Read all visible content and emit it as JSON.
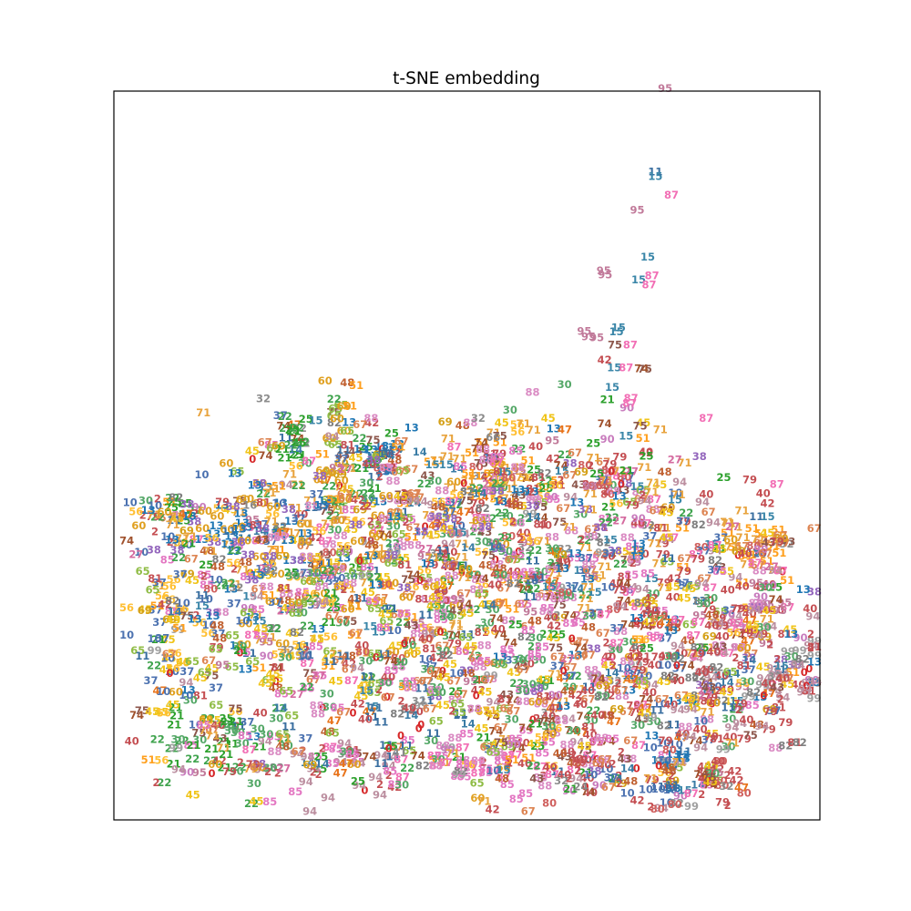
{
  "chart_data": {
    "type": "scatter",
    "title": "t-SNE embedding",
    "xlabel": "",
    "ylabel": "",
    "axis_ticks": false,
    "grid": false,
    "legend": "none",
    "xlim": [
      0,
      1
    ],
    "ylim": [
      0,
      1
    ],
    "label_colors": {
      "0": "#d62728",
      "2": "#c44e52",
      "10": "#4c72b0",
      "11": "#3a6fa0",
      "13": "#1f77b4",
      "14": "#3a7ca5",
      "15": "#3a86a8",
      "21": "#2ca02c",
      "22": "#3fa34d",
      "25": "#2ca02c",
      "27": "#d46a9f",
      "30": "#55a868",
      "32": "#8c8c8c",
      "37": "#4c72b0",
      "38": "#9467bd",
      "40": "#c44e52",
      "42": "#c44e52",
      "43": "#8c564b",
      "45": "#f0c419",
      "47": "#e8731a",
      "48": "#c06030",
      "51": "#ff9f1c",
      "56": "#ffbf33",
      "60": "#e0a020",
      "65": "#8fbc45",
      "67": "#dd8452",
      "69": "#d4a017",
      "71": "#e8a33d",
      "74": "#a0522d",
      "75": "#8c564b",
      "79": "#c44e52",
      "80": "#d0605e",
      "81": "#c44e52",
      "82": "#7f7f7f",
      "85": "#e377c2",
      "87": "#f26fb5",
      "88": "#da8bc3",
      "90": "#c87bbd",
      "94": "#bc8fa0",
      "95": "#c17a9a",
      "99": "#a0a0a0"
    },
    "points": [
      {
        "label": "95",
        "x": 0.774,
        "y": 1.005
      },
      {
        "label": "11",
        "x": 0.76,
        "y": 0.889
      },
      {
        "label": "15",
        "x": 0.76,
        "y": 0.883
      },
      {
        "label": "87",
        "x": 0.783,
        "y": 0.857
      },
      {
        "label": "95",
        "x": 0.734,
        "y": 0.836
      },
      {
        "label": "15",
        "x": 0.749,
        "y": 0.771
      },
      {
        "label": "95",
        "x": 0.686,
        "y": 0.752
      },
      {
        "label": "95",
        "x": 0.688,
        "y": 0.746
      },
      {
        "label": "15",
        "x": 0.736,
        "y": 0.739
      },
      {
        "label": "87",
        "x": 0.755,
        "y": 0.745
      },
      {
        "label": "87",
        "x": 0.751,
        "y": 0.732
      },
      {
        "label": "95",
        "x": 0.658,
        "y": 0.668
      },
      {
        "label": "95",
        "x": 0.664,
        "y": 0.66
      },
      {
        "label": "15",
        "x": 0.707,
        "y": 0.673
      },
      {
        "label": "15",
        "x": 0.704,
        "y": 0.667
      },
      {
        "label": "95",
        "x": 0.676,
        "y": 0.659
      },
      {
        "label": "75",
        "x": 0.702,
        "y": 0.649
      },
      {
        "label": "87",
        "x": 0.724,
        "y": 0.649
      },
      {
        "label": "42",
        "x": 0.687,
        "y": 0.628
      },
      {
        "label": "15",
        "x": 0.701,
        "y": 0.617
      },
      {
        "label": "87",
        "x": 0.718,
        "y": 0.617
      },
      {
        "label": "75",
        "x": 0.745,
        "y": 0.615
      },
      {
        "label": "74",
        "x": 0.74,
        "y": 0.616
      },
      {
        "label": "15",
        "x": 0.698,
        "y": 0.59
      },
      {
        "label": "21",
        "x": 0.691,
        "y": 0.573
      },
      {
        "label": "87",
        "x": 0.725,
        "y": 0.575
      },
      {
        "label": "87",
        "x": 0.723,
        "y": 0.568
      },
      {
        "label": "74",
        "x": 0.687,
        "y": 0.539
      },
      {
        "label": "75",
        "x": 0.738,
        "y": 0.536
      },
      {
        "label": "47",
        "x": 0.63,
        "y": 0.531
      },
      {
        "label": "15",
        "x": 0.718,
        "y": 0.522
      },
      {
        "label": "51",
        "x": 0.742,
        "y": 0.519
      },
      {
        "label": "95",
        "x": 0.612,
        "y": 0.516
      },
      {
        "label": "25",
        "x": 0.671,
        "y": 0.512
      },
      {
        "label": "90",
        "x": 0.691,
        "y": 0.518
      },
      {
        "label": "25",
        "x": 0.747,
        "y": 0.494
      },
      {
        "label": "27",
        "x": 0.788,
        "y": 0.489
      },
      {
        "label": "75",
        "x": 0.537,
        "y": 0.522
      },
      {
        "label": "66",
        "x": 0.527,
        "y": 0.52
      },
      {
        "label": "15",
        "x": 0.734,
        "y": 0.452
      },
      {
        "label": "71",
        "x": 0.757,
        "y": 0.457
      },
      {
        "label": "15",
        "x": 0.921,
        "y": 0.41
      },
      {
        "label": "45",
        "x": 0.33,
        "y": 0.492
      },
      {
        "label": "14",
        "x": 0.422,
        "y": 0.5
      },
      {
        "label": "15",
        "x": 0.44,
        "y": 0.482
      },
      {
        "label": "15",
        "x": 0.46,
        "y": 0.482
      },
      {
        "label": "85",
        "x": 0.48,
        "y": 0.48
      },
      {
        "label": "56",
        "x": 0.617,
        "y": 0.454
      },
      {
        "label": "95",
        "x": 0.667,
        "y": 0.452
      },
      {
        "label": "22",
        "x": 0.248,
        "y": 0.453
      },
      {
        "label": "38",
        "x": 0.154,
        "y": 0.424
      },
      {
        "label": "16",
        "x": 0.178,
        "y": 0.426
      },
      {
        "label": "13",
        "x": 0.163,
        "y": 0.393
      },
      {
        "label": "11",
        "x": 0.148,
        "y": 0.39
      },
      {
        "label": "22",
        "x": 0.076,
        "y": 0.353
      },
      {
        "label": "37",
        "x": 0.078,
        "y": 0.33
      },
      {
        "label": "69",
        "x": 0.027,
        "y": 0.28
      },
      {
        "label": "14",
        "x": 0.07,
        "y": 0.278
      },
      {
        "label": "10",
        "x": 0.054,
        "y": 0.167
      },
      {
        "label": "45",
        "x": 0.038,
        "y": 0.139
      },
      {
        "label": "30",
        "x": 0.438,
        "y": 0.099
      },
      {
        "label": "0",
        "x": 0.4,
        "y": 0.106
      },
      {
        "label": "41",
        "x": 0.393,
        "y": 0.082
      },
      {
        "label": "82",
        "x": 0.426,
        "y": 0.064
      },
      {
        "label": "88",
        "x": 0.445,
        "y": 0.064
      },
      {
        "label": "85",
        "x": 0.484,
        "y": 0.066
      },
      {
        "label": "48",
        "x": 0.54,
        "y": 0.046
      },
      {
        "label": "43",
        "x": 0.59,
        "y": 0.046
      },
      {
        "label": "32",
        "x": 0.625,
        "y": 0.043
      },
      {
        "label": "24",
        "x": 0.653,
        "y": 0.035
      },
      {
        "label": "80",
        "x": 0.608,
        "y": 0.012
      },
      {
        "label": "42",
        "x": 0.734,
        "y": 0.016
      },
      {
        "label": "80",
        "x": 0.763,
        "y": 0.004
      },
      {
        "label": "80",
        "x": 0.788,
        "y": 0.01
      },
      {
        "label": "80",
        "x": 0.853,
        "y": 0.07
      },
      {
        "label": "79",
        "x": 0.882,
        "y": 0.15
      },
      {
        "label": "81",
        "x": 0.96,
        "y": 0.096
      },
      {
        "label": "82",
        "x": 0.967,
        "y": 0.096
      },
      {
        "label": "40",
        "x": 0.85,
        "y": 0.07
      },
      {
        "label": "94",
        "x": 0.825,
        "y": 0.089
      },
      {
        "label": "71",
        "x": 0.794,
        "y": 0.069
      },
      {
        "label": "0",
        "x": 0.77,
        "y": 0.064
      },
      {
        "label": "40",
        "x": 0.982,
        "y": 0.282
      },
      {
        "label": "2",
        "x": 0.989,
        "y": 0.247
      }
    ],
    "clusters": [
      {
        "x": 0.24,
        "y": 0.52,
        "rx": 0.015,
        "ry": 0.02,
        "n": 28,
        "labels": [
          "22",
          "25",
          "21"
        ]
      },
      {
        "x": 0.07,
        "y": 0.42,
        "rx": 0.02,
        "ry": 0.01,
        "n": 18,
        "labels": [
          "22",
          "25"
        ]
      },
      {
        "x": 0.3,
        "y": 0.49,
        "rx": 0.012,
        "ry": 0.05,
        "n": 40,
        "labels": [
          "65",
          "60",
          "22"
        ]
      },
      {
        "x": 0.37,
        "y": 0.5,
        "rx": 0.015,
        "ry": 0.02,
        "n": 24,
        "labels": [
          "14",
          "11",
          "13"
        ]
      },
      {
        "x": 0.53,
        "y": 0.47,
        "rx": 0.04,
        "ry": 0.025,
        "n": 60,
        "labels": [
          "56",
          "51",
          "71"
        ]
      },
      {
        "x": 0.69,
        "y": 0.46,
        "rx": 0.02,
        "ry": 0.015,
        "n": 26,
        "labels": [
          "2",
          "80",
          "88"
        ]
      },
      {
        "x": 0.91,
        "y": 0.37,
        "rx": 0.04,
        "ry": 0.025,
        "n": 50,
        "labels": [
          "51",
          "71",
          "67"
        ]
      },
      {
        "x": 0.96,
        "y": 0.19,
        "rx": 0.03,
        "ry": 0.03,
        "n": 50,
        "labels": [
          "99",
          "45",
          "94"
        ]
      },
      {
        "x": 0.92,
        "y": 0.28,
        "rx": 0.025,
        "ry": 0.025,
        "n": 40,
        "labels": [
          "90",
          "95",
          "40"
        ]
      },
      {
        "x": 0.78,
        "y": 0.06,
        "rx": 0.015,
        "ry": 0.04,
        "n": 45,
        "labels": [
          "13",
          "11",
          "10"
        ]
      },
      {
        "x": 0.84,
        "y": 0.04,
        "rx": 0.025,
        "ry": 0.015,
        "n": 30,
        "labels": [
          "80",
          "2",
          "42"
        ]
      },
      {
        "x": 0.67,
        "y": 0.06,
        "rx": 0.04,
        "ry": 0.025,
        "n": 45,
        "labels": [
          "0",
          "2",
          "40"
        ]
      },
      {
        "x": 0.14,
        "y": 0.09,
        "rx": 0.05,
        "ry": 0.03,
        "n": 60,
        "labels": [
          "30",
          "22",
          "21"
        ]
      },
      {
        "x": 0.3,
        "y": 0.06,
        "rx": 0.06,
        "ry": 0.02,
        "n": 55,
        "labels": [
          "2",
          "85",
          "94"
        ]
      },
      {
        "x": 0.53,
        "y": 0.07,
        "rx": 0.06,
        "ry": 0.02,
        "n": 55,
        "labels": [
          "85",
          "88",
          "87"
        ]
      },
      {
        "x": 0.07,
        "y": 0.25,
        "rx": 0.04,
        "ry": 0.08,
        "n": 90,
        "labels": [
          "56",
          "10",
          "45",
          "37"
        ]
      },
      {
        "x": 0.23,
        "y": 0.33,
        "rx": 0.08,
        "ry": 0.09,
        "n": 240,
        "labels": [
          "60",
          "65",
          "56",
          "37",
          "13",
          "85",
          "45",
          "71"
        ]
      },
      {
        "x": 0.42,
        "y": 0.33,
        "rx": 0.09,
        "ry": 0.1,
        "n": 260,
        "labels": [
          "65",
          "60",
          "71",
          "51",
          "88",
          "30",
          "22",
          "67"
        ]
      },
      {
        "x": 0.6,
        "y": 0.32,
        "rx": 0.09,
        "ry": 0.1,
        "n": 260,
        "labels": [
          "67",
          "71",
          "88",
          "40",
          "85",
          "22",
          "74",
          "30"
        ]
      },
      {
        "x": 0.78,
        "y": 0.3,
        "rx": 0.08,
        "ry": 0.11,
        "n": 220,
        "labels": [
          "40",
          "94",
          "37",
          "45",
          "79",
          "71",
          "87",
          "13"
        ]
      },
      {
        "x": 0.35,
        "y": 0.18,
        "rx": 0.12,
        "ry": 0.07,
        "n": 200,
        "labels": [
          "85",
          "45",
          "65",
          "0",
          "67",
          "11",
          "30"
        ]
      },
      {
        "x": 0.62,
        "y": 0.15,
        "rx": 0.11,
        "ry": 0.07,
        "n": 200,
        "labels": [
          "88",
          "40",
          "2",
          "45",
          "30",
          "74",
          "67"
        ]
      },
      {
        "x": 0.87,
        "y": 0.17,
        "rx": 0.06,
        "ry": 0.07,
        "n": 110,
        "labels": [
          "94",
          "79",
          "40",
          "30",
          "82"
        ]
      },
      {
        "x": 0.48,
        "y": 0.41,
        "rx": 0.14,
        "ry": 0.05,
        "n": 160,
        "labels": [
          "38",
          "88",
          "13",
          "56",
          "67",
          "71",
          "2"
        ]
      },
      {
        "x": 0.15,
        "y": 0.39,
        "rx": 0.06,
        "ry": 0.03,
        "n": 70,
        "labels": [
          "13",
          "38",
          "60",
          "71"
        ]
      }
    ]
  }
}
